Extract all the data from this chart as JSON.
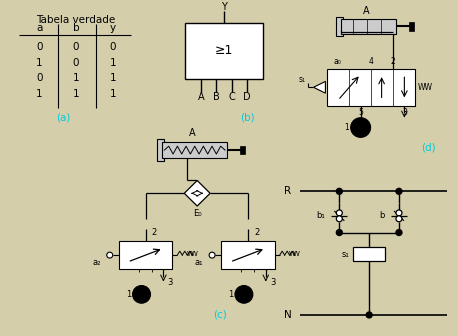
{
  "bg_color": "#d4ceaa",
  "black": "#000000",
  "white": "#ffffff",
  "cyan_color": "#00ccdd",
  "light_gray": "#cccccc",
  "mid_gray": "#aaaaaa",
  "gate_symbol": "≥1",
  "gate_inputs": [
    "A",
    "B",
    "C",
    "D"
  ],
  "gate_output": "Y"
}
